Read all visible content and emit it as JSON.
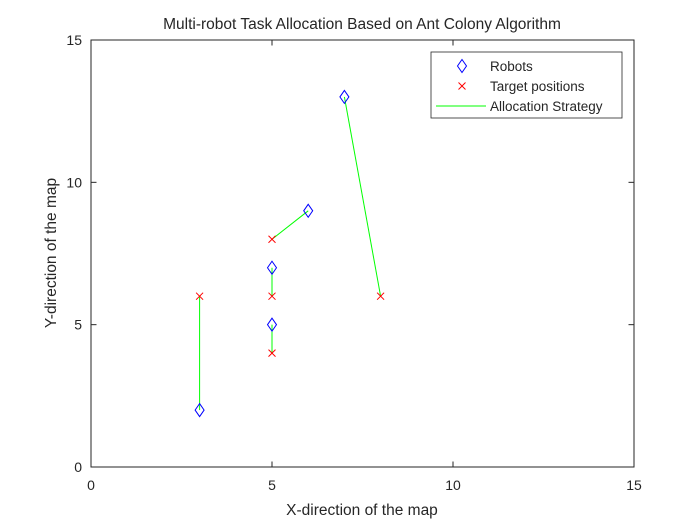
{
  "chart_data": {
    "type": "scatter",
    "title": "Multi-robot Task Allocation Based on Ant Colony Algorithm",
    "xlabel": "X-direction of the map",
    "ylabel": "Y-direction of the map",
    "xlim": [
      0,
      15
    ],
    "ylim": [
      0,
      15
    ],
    "xticks": [
      0,
      5,
      10,
      15
    ],
    "yticks": [
      0,
      5,
      10,
      15
    ],
    "grid": false,
    "legend_position": "top-right",
    "legend": [
      "Robots",
      "Target positions",
      "Allocation Strategy"
    ],
    "series": [
      {
        "name": "Robots",
        "marker": "diamond",
        "color": "#0000ff",
        "points": [
          [
            3,
            2
          ],
          [
            5,
            5
          ],
          [
            5,
            7
          ],
          [
            6,
            9
          ],
          [
            7,
            13
          ]
        ]
      },
      {
        "name": "Target positions",
        "marker": "x",
        "color": "#ff0000",
        "points": [
          [
            3,
            6
          ],
          [
            5,
            4
          ],
          [
            5,
            6
          ],
          [
            5,
            8
          ],
          [
            8,
            6
          ]
        ]
      },
      {
        "name": "Allocation Strategy",
        "marker": "line",
        "color": "#00ff00",
        "segments": [
          [
            [
              3,
              2
            ],
            [
              3,
              6
            ]
          ],
          [
            [
              5,
              5
            ],
            [
              5,
              4
            ]
          ],
          [
            [
              5,
              7
            ],
            [
              5,
              6
            ]
          ],
          [
            [
              6,
              9
            ],
            [
              5,
              8
            ]
          ],
          [
            [
              7,
              13
            ],
            [
              8,
              6
            ]
          ]
        ]
      }
    ]
  }
}
